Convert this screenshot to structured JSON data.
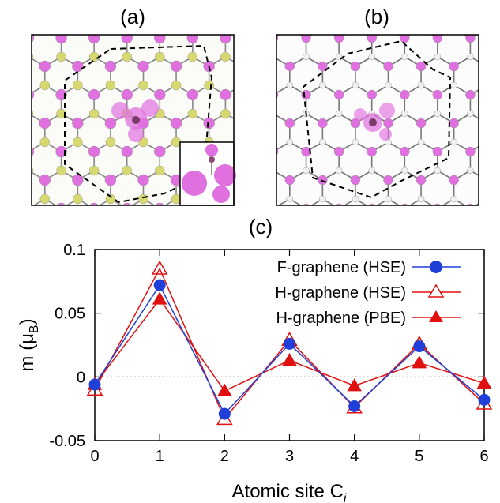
{
  "panels": {
    "a": {
      "label": "(a)"
    },
    "b": {
      "label": "(b)"
    },
    "c": {
      "label": "(c)"
    }
  },
  "colors": {
    "magenta": "#e070e0",
    "yellow": "#d8d870",
    "white_atom": "#f0f0f0",
    "blue": "#1f3fd8",
    "red": "#e01010"
  },
  "chart_data": {
    "type": "line",
    "xlabel": "Atomic site C",
    "xlabel_sub": "i",
    "ylabel": "m (μ",
    "ylabel_sub": "B",
    "ylabel_close": ")",
    "xlim": [
      0,
      6
    ],
    "ylim": [
      -0.05,
      0.1
    ],
    "x": [
      0,
      1,
      2,
      3,
      4,
      5,
      6
    ],
    "yticks": [
      "-0.05",
      "0",
      "0.05",
      "0.1"
    ],
    "ytick_values": [
      -0.05,
      0,
      0.05,
      0.1
    ],
    "xticks": [
      "0",
      "1",
      "2",
      "3",
      "4",
      "5",
      "6"
    ],
    "legend_position": "top-right",
    "zero_line": "dotted",
    "series": [
      {
        "name": "F-graphene (HSE)",
        "color": "#1f3fd8",
        "marker": "circle-filled",
        "values": [
          -0.006,
          0.072,
          -0.029,
          0.026,
          -0.023,
          0.024,
          -0.018
        ]
      },
      {
        "name": "H-graphene (HSE)",
        "color": "#e01010",
        "marker": "triangle-open",
        "values": [
          -0.01,
          0.085,
          -0.033,
          0.029,
          -0.024,
          0.026,
          -0.021
        ]
      },
      {
        "name": "H-graphene (PBE)",
        "color": "#e01010",
        "marker": "triangle-filled",
        "values": [
          -0.006,
          0.061,
          -0.011,
          0.013,
          -0.007,
          0.011,
          -0.005
        ]
      }
    ]
  }
}
